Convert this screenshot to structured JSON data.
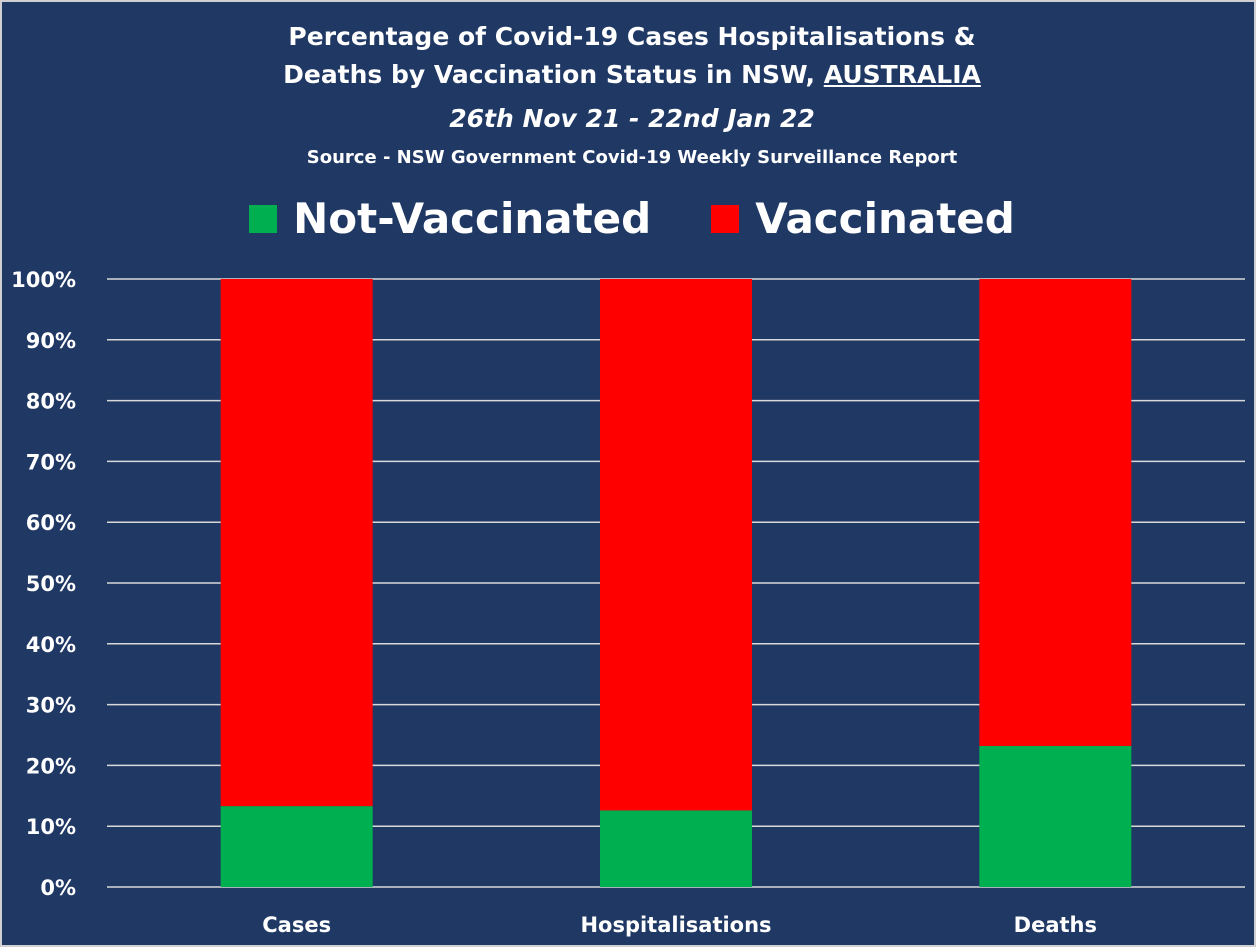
{
  "chart_data": {
    "type": "bar",
    "stacked": true,
    "title": "Percentage of Covid-19 Cases Hospitalisations &",
    "title_line2": "Deaths by Vaccination Status in NSW,",
    "title_emph": "AUSTRALIA",
    "subtitle": "26th Nov 21 - 22nd Jan 22",
    "source": "Source - NSW Government Covid-19 Weekly Surveillance Report",
    "categories": [
      "Cases",
      "Hospitalisations",
      "Deaths"
    ],
    "series": [
      {
        "name": "Not-Vaccinated",
        "color": "#00b050",
        "values": [
          13.3,
          12.6,
          23.2
        ]
      },
      {
        "name": "Vaccinated",
        "color": "#ff0000",
        "values": [
          86.7,
          87.4,
          76.8
        ]
      }
    ],
    "ylim": [
      0,
      100
    ],
    "yticks": [
      "0%",
      "10%",
      "20%",
      "30%",
      "40%",
      "50%",
      "60%",
      "70%",
      "80%",
      "90%",
      "100%"
    ],
    "grid": true,
    "legend_position": "top",
    "xlabel": "",
    "ylabel": ""
  }
}
